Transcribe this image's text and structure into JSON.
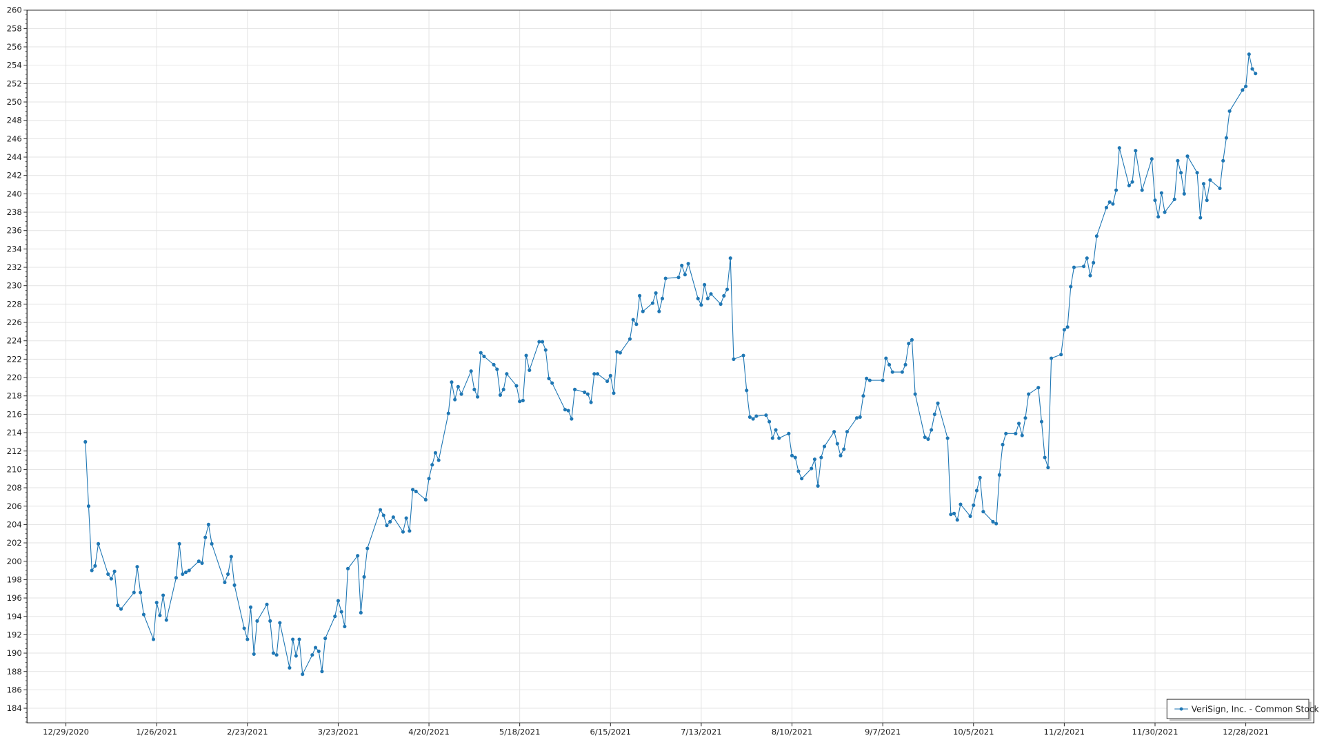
{
  "chart_data": {
    "type": "line",
    "title": "",
    "xlabel": "",
    "ylabel": "",
    "ylim": [
      182.4,
      260
    ],
    "xlim": [
      "12/17/2020",
      "1/18/2022"
    ],
    "y_ticks_step": 2,
    "x_tick_labels": [
      "12/29/2020",
      "1/26/2021",
      "2/23/2021",
      "3/23/2021",
      "4/20/2021",
      "5/18/2021",
      "6/15/2021",
      "7/13/2021",
      "8/10/2021",
      "9/7/2021",
      "10/5/2021",
      "11/2/2021",
      "11/30/2021",
      "12/28/2021"
    ],
    "grid": true,
    "legend_position": "bottom-right",
    "series": [
      {
        "name": "VeriSign, Inc. - Common Stock",
        "color": "#1f77b4",
        "marker": "circle",
        "x": [
          "1/4/2021",
          "1/5/2021",
          "1/6/2021",
          "1/7/2021",
          "1/8/2021",
          "1/11/2021",
          "1/12/2021",
          "1/13/2021",
          "1/14/2021",
          "1/15/2021",
          "1/19/2021",
          "1/20/2021",
          "1/21/2021",
          "1/22/2021",
          "1/25/2021",
          "1/26/2021",
          "1/27/2021",
          "1/28/2021",
          "1/29/2021",
          "2/1/2021",
          "2/2/2021",
          "2/3/2021",
          "2/4/2021",
          "2/5/2021",
          "2/8/2021",
          "2/9/2021",
          "2/10/2021",
          "2/11/2021",
          "2/12/2021",
          "2/16/2021",
          "2/17/2021",
          "2/18/2021",
          "2/19/2021",
          "2/22/2021",
          "2/23/2021",
          "2/24/2021",
          "2/25/2021",
          "2/26/2021",
          "3/1/2021",
          "3/2/2021",
          "3/3/2021",
          "3/4/2021",
          "3/5/2021",
          "3/8/2021",
          "3/9/2021",
          "3/10/2021",
          "3/11/2021",
          "3/12/2021",
          "3/15/2021",
          "3/16/2021",
          "3/17/2021",
          "3/18/2021",
          "3/19/2021",
          "3/22/2021",
          "3/23/2021",
          "3/24/2021",
          "3/25/2021",
          "3/26/2021",
          "3/29/2021",
          "3/30/2021",
          "3/31/2021",
          "4/1/2021",
          "4/5/2021",
          "4/6/2021",
          "4/7/2021",
          "4/8/2021",
          "4/9/2021",
          "4/12/2021",
          "4/13/2021",
          "4/14/2021",
          "4/15/2021",
          "4/16/2021",
          "4/19/2021",
          "4/20/2021",
          "4/21/2021",
          "4/22/2021",
          "4/23/2021",
          "4/26/2021",
          "4/27/2021",
          "4/28/2021",
          "4/29/2021",
          "4/30/2021",
          "5/3/2021",
          "5/4/2021",
          "5/5/2021",
          "5/6/2021",
          "5/7/2021",
          "5/10/2021",
          "5/11/2021",
          "5/12/2021",
          "5/13/2021",
          "5/14/2021",
          "5/17/2021",
          "5/18/2021",
          "5/19/2021",
          "5/20/2021",
          "5/21/2021",
          "5/24/2021",
          "5/25/2021",
          "5/26/2021",
          "5/27/2021",
          "5/28/2021",
          "6/1/2021",
          "6/2/2021",
          "6/3/2021",
          "6/4/2021",
          "6/7/2021",
          "6/8/2021",
          "6/9/2021",
          "6/10/2021",
          "6/11/2021",
          "6/14/2021",
          "6/15/2021",
          "6/16/2021",
          "6/17/2021",
          "6/18/2021",
          "6/21/2021",
          "6/22/2021",
          "6/23/2021",
          "6/24/2021",
          "6/25/2021",
          "6/28/2021",
          "6/29/2021",
          "6/30/2021",
          "7/1/2021",
          "7/2/2021",
          "7/6/2021",
          "7/7/2021",
          "7/8/2021",
          "7/9/2021",
          "7/12/2021",
          "7/13/2021",
          "7/14/2021",
          "7/15/2021",
          "7/16/2021",
          "7/19/2021",
          "7/20/2021",
          "7/21/2021",
          "7/22/2021",
          "7/23/2021",
          "7/26/2021",
          "7/27/2021",
          "7/28/2021",
          "7/29/2021",
          "7/30/2021",
          "8/2/2021",
          "8/3/2021",
          "8/4/2021",
          "8/5/2021",
          "8/6/2021",
          "8/9/2021",
          "8/10/2021",
          "8/11/2021",
          "8/12/2021",
          "8/13/2021",
          "8/16/2021",
          "8/17/2021",
          "8/18/2021",
          "8/19/2021",
          "8/20/2021",
          "8/23/2021",
          "8/24/2021",
          "8/25/2021",
          "8/26/2021",
          "8/27/2021",
          "8/30/2021",
          "8/31/2021",
          "9/1/2021",
          "9/2/2021",
          "9/3/2021",
          "9/7/2021",
          "9/8/2021",
          "9/9/2021",
          "9/10/2021",
          "9/13/2021",
          "9/14/2021",
          "9/15/2021",
          "9/16/2021",
          "9/17/2021",
          "9/20/2021",
          "9/21/2021",
          "9/22/2021",
          "9/23/2021",
          "9/24/2021",
          "9/27/2021",
          "9/28/2021",
          "9/29/2021",
          "9/30/2021",
          "10/1/2021",
          "10/4/2021",
          "10/5/2021",
          "10/6/2021",
          "10/7/2021",
          "10/8/2021",
          "10/11/2021",
          "10/12/2021",
          "10/13/2021",
          "10/14/2021",
          "10/15/2021",
          "10/18/2021",
          "10/19/2021",
          "10/20/2021",
          "10/21/2021",
          "10/22/2021",
          "10/25/2021",
          "10/26/2021",
          "10/27/2021",
          "10/28/2021",
          "10/29/2021",
          "11/1/2021",
          "11/2/2021",
          "11/3/2021",
          "11/4/2021",
          "11/5/2021",
          "11/8/2021",
          "11/9/2021",
          "11/10/2021",
          "11/11/2021",
          "11/12/2021",
          "11/15/2021",
          "11/16/2021",
          "11/17/2021",
          "11/18/2021",
          "11/19/2021",
          "11/22/2021",
          "11/23/2021",
          "11/24/2021",
          "11/26/2021",
          "11/29/2021",
          "11/30/2021",
          "12/1/2021",
          "12/2/2021",
          "12/3/2021",
          "12/6/2021",
          "12/7/2021",
          "12/8/2021",
          "12/9/2021",
          "12/10/2021",
          "12/13/2021",
          "12/14/2021",
          "12/15/2021",
          "12/16/2021",
          "12/17/2021",
          "12/20/2021",
          "12/21/2021",
          "12/22/2021",
          "12/23/2021",
          "12/27/2021",
          "12/28/2021",
          "12/29/2021",
          "12/30/2021",
          "12/31/2021"
        ],
        "y": [
          213.0,
          206.0,
          199.0,
          199.5,
          201.9,
          198.6,
          198.1,
          198.9,
          195.2,
          194.8,
          196.6,
          199.4,
          196.6,
          194.2,
          191.5,
          195.5,
          194.1,
          196.3,
          193.6,
          198.2,
          201.9,
          198.6,
          198.8,
          199.0,
          200.0,
          199.8,
          202.6,
          204.0,
          201.9,
          197.7,
          198.6,
          200.5,
          197.4,
          192.7,
          191.5,
          195.0,
          189.9,
          193.5,
          195.3,
          193.5,
          190.0,
          189.8,
          193.3,
          188.4,
          191.5,
          189.7,
          191.5,
          187.7,
          189.8,
          190.6,
          190.2,
          188.0,
          191.6,
          194.0,
          195.7,
          194.5,
          192.9,
          199.2,
          200.6,
          194.4,
          198.3,
          201.4,
          205.6,
          205.0,
          203.9,
          204.3,
          204.8,
          203.2,
          204.7,
          203.3,
          207.8,
          207.6,
          206.7,
          209.0,
          210.5,
          211.8,
          211.0,
          216.1,
          219.5,
          217.6,
          219.0,
          218.2,
          220.7,
          218.7,
          217.9,
          222.7,
          222.3,
          221.4,
          220.9,
          218.1,
          218.7,
          220.4,
          219.1,
          217.4,
          217.5,
          222.4,
          220.8,
          223.9,
          223.9,
          223.0,
          219.9,
          219.4,
          216.5,
          216.4,
          215.5,
          218.7,
          218.4,
          218.2,
          217.3,
          220.4,
          220.4,
          219.6,
          220.2,
          218.3,
          222.8,
          222.7,
          224.2,
          226.3,
          225.8,
          228.9,
          227.2,
          228.1,
          229.2,
          227.2,
          228.6,
          230.8,
          230.9,
          232.2,
          231.2,
          232.4,
          228.6,
          227.9,
          230.1,
          228.6,
          229.1,
          228.0,
          228.9,
          229.6,
          233.0,
          222.0,
          222.4,
          218.6,
          215.7,
          215.5,
          215.8,
          215.9,
          215.2,
          213.4,
          214.3,
          213.4,
          213.9,
          211.5,
          211.3,
          209.8,
          209.0,
          210.1,
          211.1,
          208.2,
          211.3,
          212.5,
          214.1,
          212.8,
          211.5,
          212.2,
          214.1,
          215.6,
          215.7,
          218.0,
          219.9,
          219.7,
          219.7,
          222.1,
          221.4,
          220.6,
          220.6,
          221.4,
          223.7,
          224.1,
          218.2,
          213.5,
          213.3,
          214.3,
          216.0,
          217.2,
          213.4,
          205.1,
          205.2,
          204.5,
          206.2,
          204.9,
          206.1,
          207.7,
          209.1,
          205.4,
          204.3,
          204.1,
          209.4,
          212.7,
          213.9,
          213.9,
          215.0,
          213.7,
          215.6,
          218.2,
          218.9,
          215.2,
          211.3,
          210.2,
          222.1,
          222.5,
          225.2,
          225.5,
          229.9,
          232.0,
          232.1,
          233.0,
          231.1,
          232.5,
          235.4,
          238.5,
          239.1,
          238.9,
          240.4,
          245.0,
          240.9,
          241.3,
          244.7,
          240.4,
          243.8,
          239.3,
          237.5,
          240.1,
          238.0,
          239.4,
          243.6,
          242.3,
          240.0,
          244.1,
          242.3,
          237.4,
          241.1,
          239.3,
          241.5,
          240.6,
          243.6,
          246.1,
          249.0,
          251.3,
          251.7,
          255.2,
          253.6,
          253.1
        ]
      }
    ]
  }
}
